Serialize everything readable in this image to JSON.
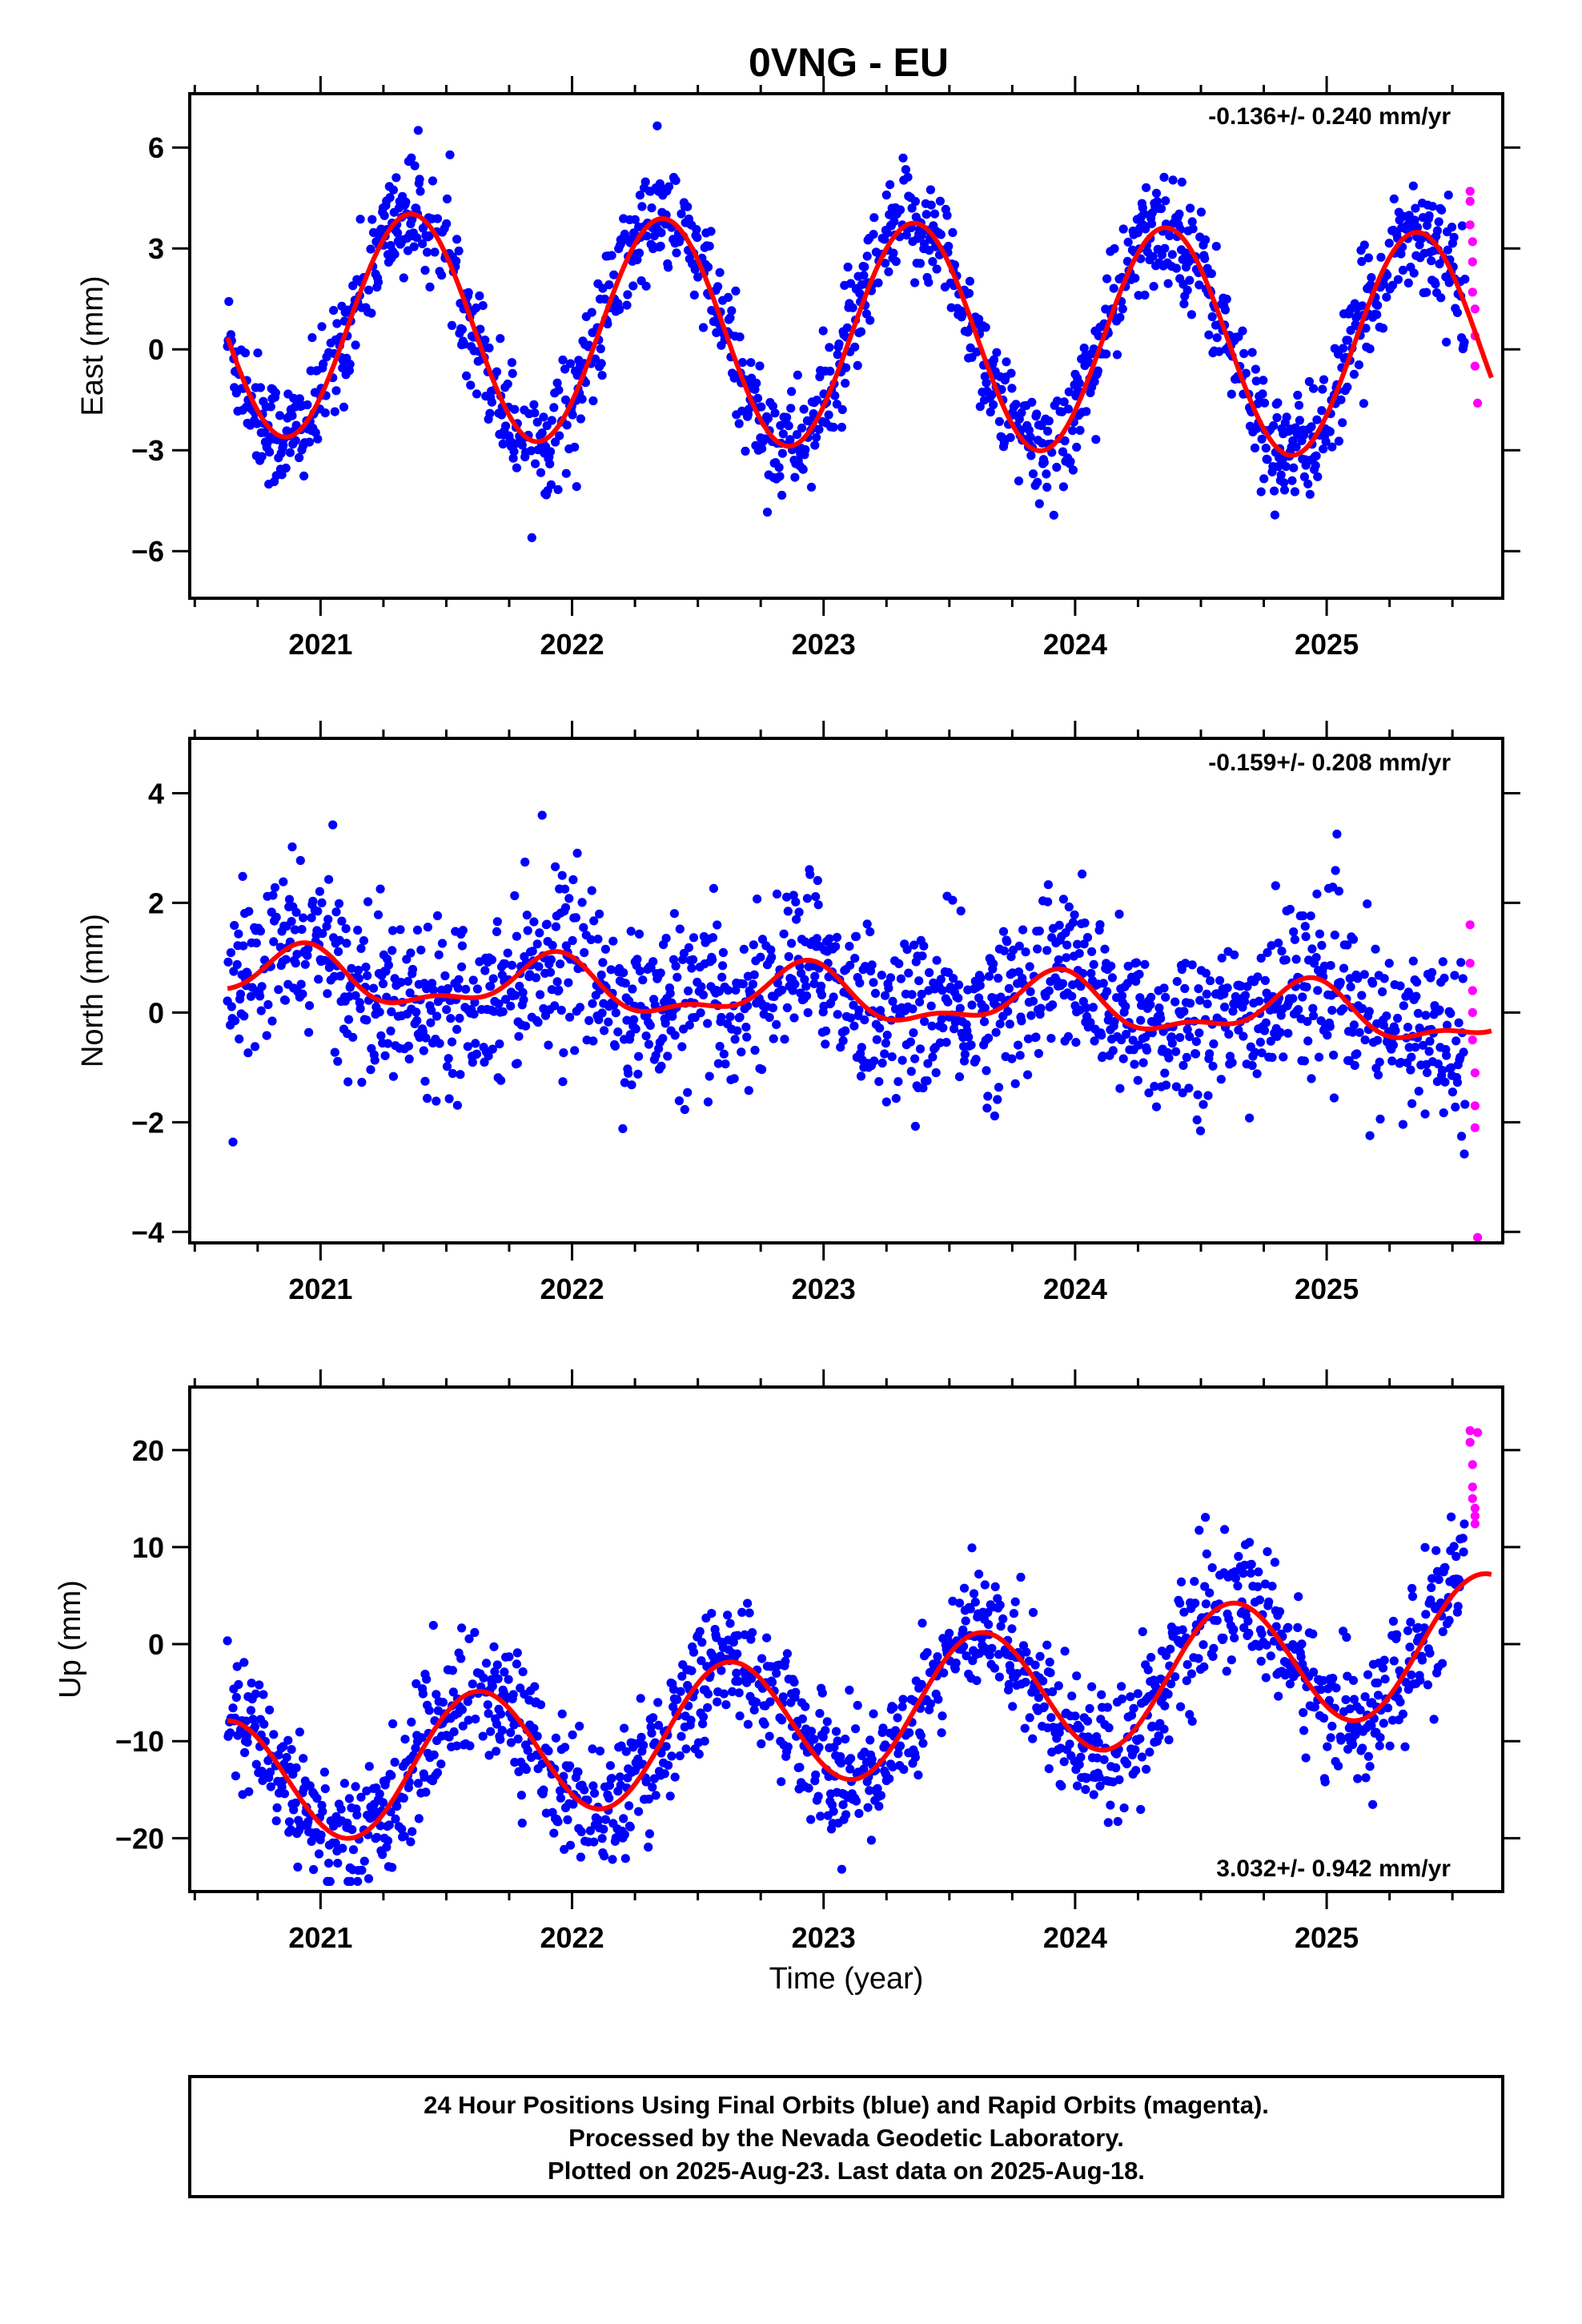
{
  "chart_data": {
    "type": "scatter",
    "title": "0VNG - EU",
    "xlabel": "Time (year)",
    "x_ticks": [
      "2021",
      "2022",
      "2023",
      "2024",
      "2025"
    ],
    "xlim": [
      2020.48,
      2025.7
    ],
    "colors": {
      "final": "#0000ff",
      "rapid": "#ff00ff",
      "model": "#ff0000"
    },
    "panels": [
      {
        "name": "east",
        "ylabel": "East (mm)",
        "ylim": [
          -7.4,
          7.6
        ],
        "y_ticks": [
          "6",
          "3",
          "0",
          "−3",
          "−6"
        ],
        "y_tick_values": [
          6,
          3,
          0,
          -3,
          -6
        ],
        "rate": "-0.136+/- 0.240 mm/yr",
        "rate_position": "top-right",
        "model": {
          "offset": 0.45,
          "trend": -0.136,
          "amp1": 3.35,
          "phase1": 2021.36,
          "amp2": 0.0,
          "phase2": 2021.0
        },
        "scatter_sd": 0.85,
        "rapid_points": [
          {
            "x": 2025.57,
            "y": 4.7
          },
          {
            "x": 2025.57,
            "y": 4.4
          },
          {
            "x": 2025.57,
            "y": 3.7
          },
          {
            "x": 2025.58,
            "y": 3.2
          },
          {
            "x": 2025.58,
            "y": 2.6
          },
          {
            "x": 2025.58,
            "y": 1.7
          },
          {
            "x": 2025.59,
            "y": 1.2
          },
          {
            "x": 2025.59,
            "y": 0.4
          },
          {
            "x": 2025.59,
            "y": -0.5
          },
          {
            "x": 2025.6,
            "y": -1.6
          }
        ]
      },
      {
        "name": "north",
        "ylabel": "North (mm)",
        "ylim": [
          -4.2,
          5.0
        ],
        "y_ticks": [
          "4",
          "2",
          "0",
          "−2",
          "−4"
        ],
        "y_tick_values": [
          4,
          2,
          0,
          -2,
          -4
        ],
        "rate": "-0.159+/- 0.208 mm/yr",
        "rate_position": "top-right",
        "model": {
          "offset": 0.3,
          "trend": -0.159,
          "amp1": 0.45,
          "phase1": 2020.92,
          "amp2": 0.2,
          "phase2": 2021.45
        },
        "scatter_sd": 0.75,
        "rapid_points": [
          {
            "x": 2025.57,
            "y": 1.6
          },
          {
            "x": 2025.57,
            "y": 0.9
          },
          {
            "x": 2025.58,
            "y": 0.4
          },
          {
            "x": 2025.58,
            "y": 0.0
          },
          {
            "x": 2025.58,
            "y": -0.5
          },
          {
            "x": 2025.59,
            "y": -1.1
          },
          {
            "x": 2025.59,
            "y": -1.7
          },
          {
            "x": 2025.59,
            "y": -2.1
          },
          {
            "x": 2025.6,
            "y": -4.1
          }
        ]
      },
      {
        "name": "up",
        "ylabel": "Up (mm)",
        "ylim": [
          -25.5,
          26.5
        ],
        "y_ticks": [
          "20",
          "10",
          "0",
          "−10",
          "−20"
        ],
        "y_tick_values": [
          20,
          10,
          0,
          -10,
          -20
        ],
        "rate": "3.032+/- 0.942 mm/yr",
        "rate_position": "bottom-right",
        "model": {
          "offset": -7.5,
          "trend": 3.032,
          "amp1": 6.8,
          "phase1": 2021.62,
          "amp2": 0.0,
          "phase2": 2021.0
        },
        "scatter_sd": 3.3,
        "rapid_points": [
          {
            "x": 2025.57,
            "y": 22.0
          },
          {
            "x": 2025.57,
            "y": 20.8
          },
          {
            "x": 2025.58,
            "y": 18.5
          },
          {
            "x": 2025.58,
            "y": 16.2
          },
          {
            "x": 2025.58,
            "y": 15.0
          },
          {
            "x": 2025.59,
            "y": 14.0
          },
          {
            "x": 2025.59,
            "y": 13.2
          },
          {
            "x": 2025.59,
            "y": 12.4
          },
          {
            "x": 2025.6,
            "y": 21.8
          }
        ]
      }
    ],
    "final_orbits_range": [
      2020.63,
      2025.55
    ],
    "footer_lines": [
      "24 Hour Positions Using Final Orbits (blue) and Rapid Orbits (magenta).",
      "Processed by the Nevada Geodetic Laboratory.",
      "Plotted on 2025-Aug-23. Last data on 2025-Aug-18."
    ]
  }
}
